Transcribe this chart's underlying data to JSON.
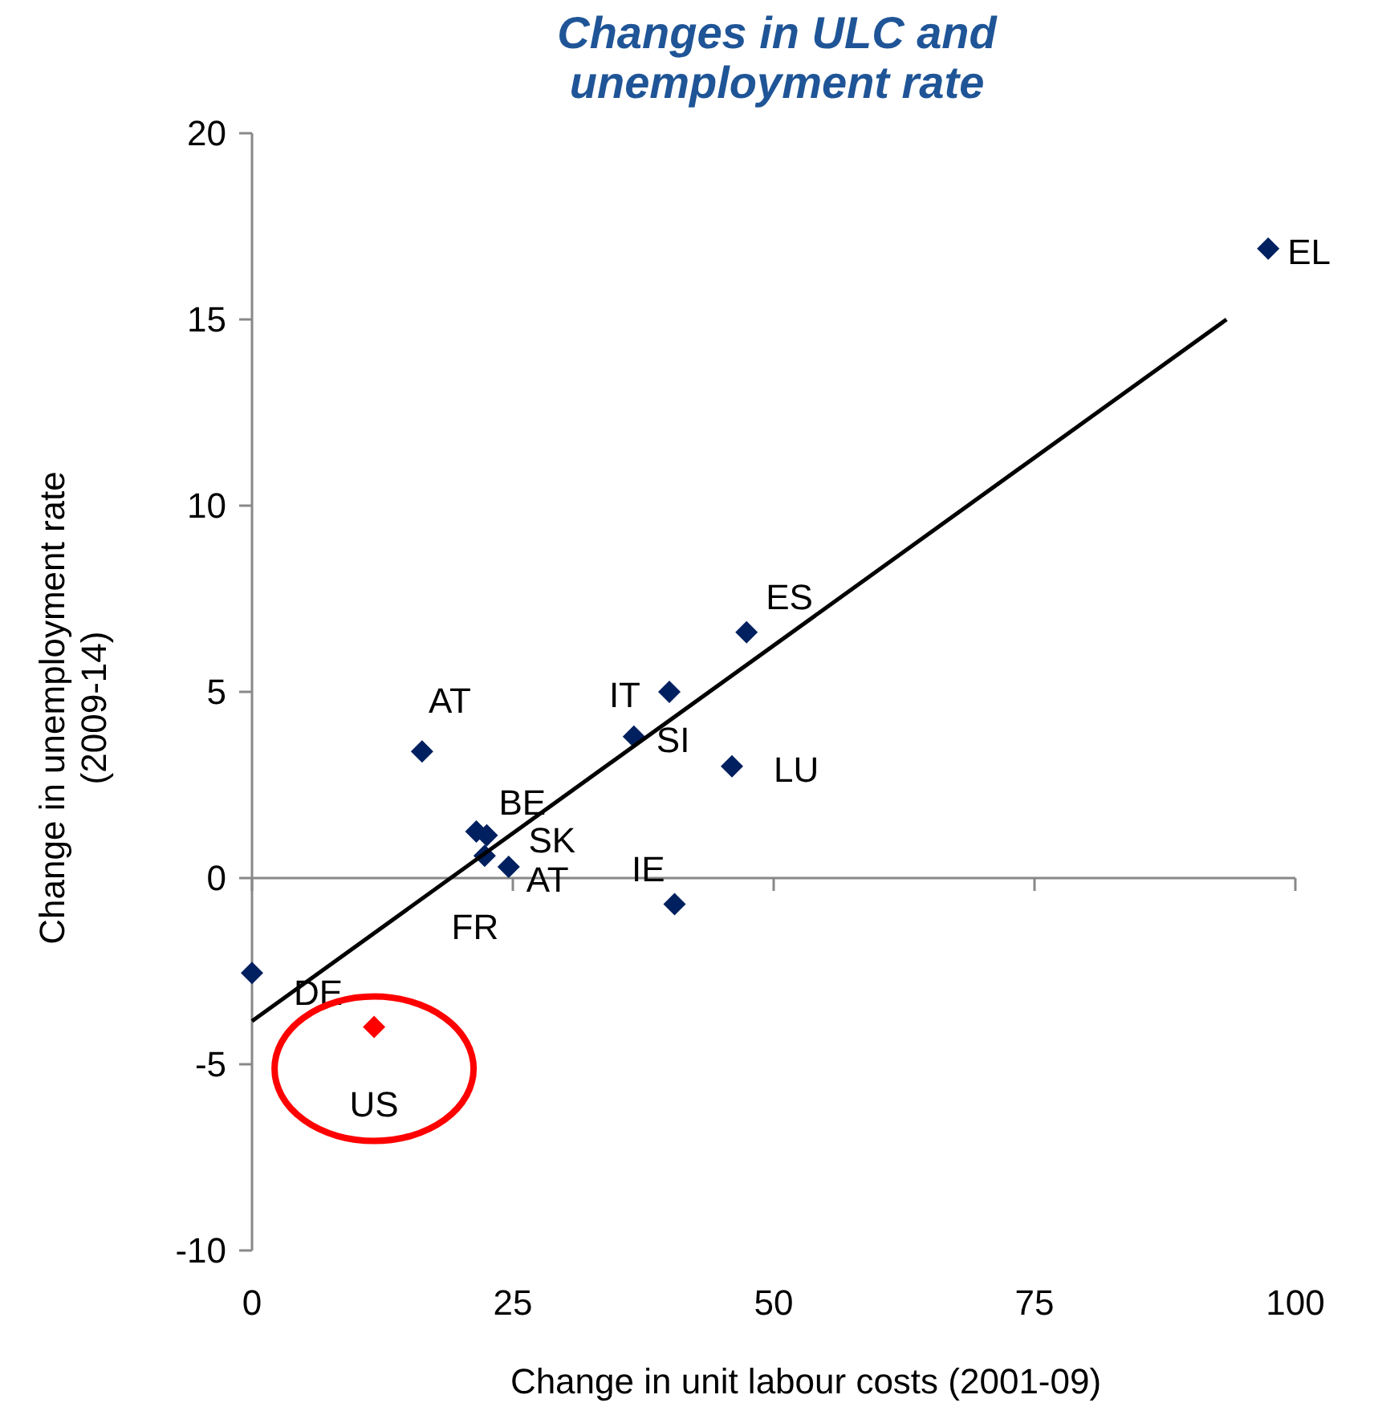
{
  "chart_data": {
    "type": "scatter",
    "title": "Changes in ULC and unemployment rate",
    "xlabel": "Change in unit labour costs (2001-09)",
    "ylabel": "Change in unemployment rate (2009-14)",
    "xlim": [
      0,
      100
    ],
    "xticks": [
      0,
      25,
      50,
      75,
      100
    ],
    "ylim": [
      -10,
      20
    ],
    "yticks": [
      -10,
      -5,
      0,
      5,
      10,
      15,
      20
    ],
    "marker": "diamond",
    "series": [
      {
        "color": "#002060",
        "x": [
          97.4,
          47.4,
          40.0,
          36.6,
          46.0,
          16.3,
          21.5,
          22.5,
          22.3,
          24.6,
          40.5,
          0
        ],
        "values": [
          16.9,
          6.6,
          5.0,
          3.8,
          3.0,
          3.4,
          1.25,
          1.15,
          0.6,
          0.3,
          -0.7,
          -2.55
        ],
        "value_labels": [
          "EL",
          "ES",
          "IT",
          "SI",
          "LU",
          "AT",
          "BE",
          "SK",
          "FR",
          "AT",
          "IE",
          "DE"
        ]
      },
      {
        "color": "#ff0000",
        "x": [
          11.7
        ],
        "values": [
          -4.0
        ],
        "value_labels": [
          "US"
        ]
      },
      {
        "type": "line",
        "marker": "none",
        "color": "#000000",
        "x": [
          0,
          93.4
        ],
        "values": [
          -3.84,
          15.0
        ]
      }
    ]
  }
}
